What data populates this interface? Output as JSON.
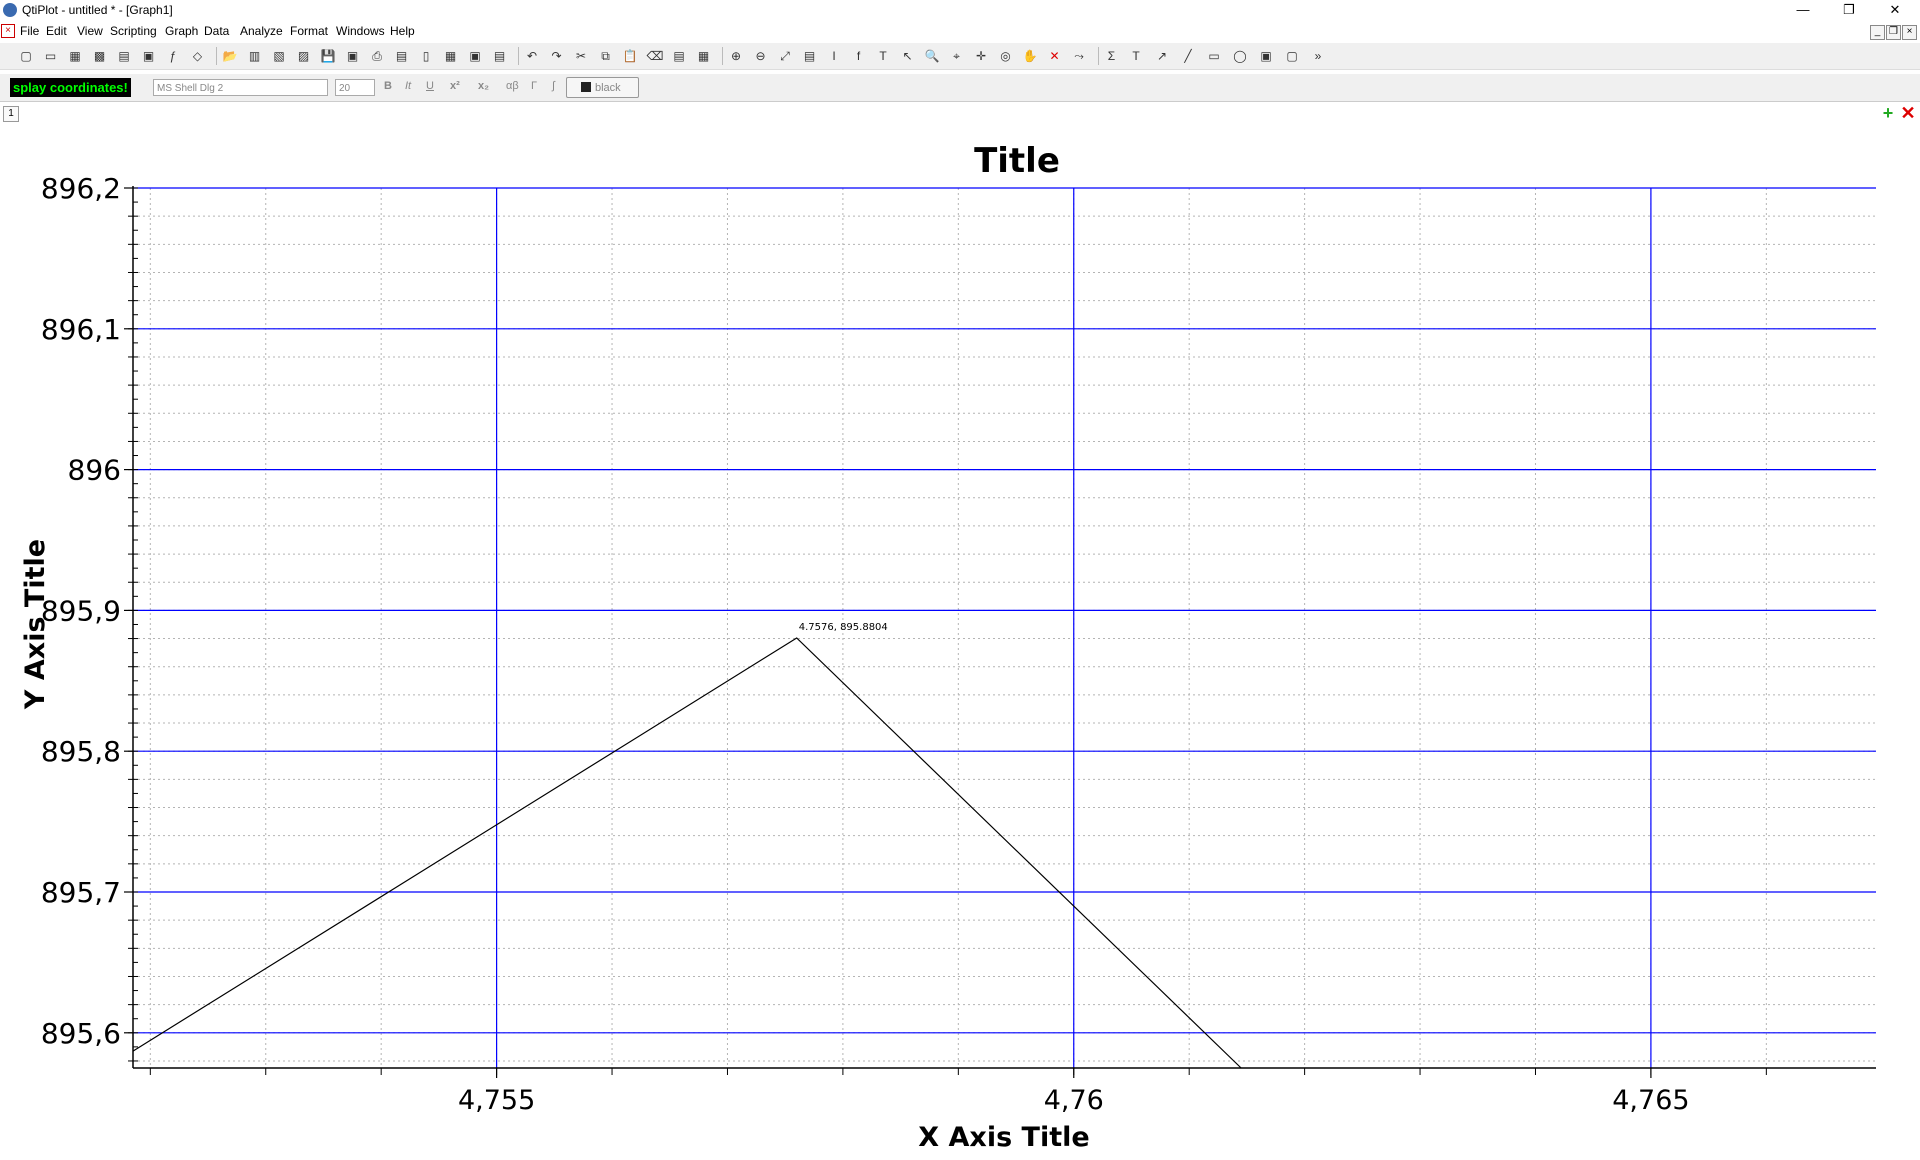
{
  "window": {
    "title": "QtiPlot - untitled * - [Graph1]",
    "controls": {
      "minimize": "—",
      "restore": "❐",
      "close": "✕"
    }
  },
  "menu": {
    "items": [
      "File",
      "Edit",
      "View",
      "Scripting",
      "Graph",
      "Data",
      "Analyze",
      "Format",
      "Windows",
      "Help"
    ]
  },
  "toolbar": {
    "icons": [
      "new-project",
      "new-folder",
      "new-table",
      "new-matrix",
      "new-note",
      "new-graph",
      "new-function",
      "new-3d-plot",
      "open-project",
      "open-template",
      "import-ascii",
      "import-image",
      "save-project",
      "save-as",
      "print",
      "print-preview",
      "export-pdf",
      "show-log",
      "show-explorer",
      "show-console",
      "undo",
      "redo",
      "cut",
      "copy",
      "paste",
      "delete",
      "append-layer",
      "arrange-layers",
      "zoom-in",
      "zoom-out",
      "rescale",
      "add-legend",
      "add-error-bars",
      "add-function",
      "add-text",
      "select",
      "zoom",
      "data-reader",
      "screen-reader",
      "data-picker",
      "pan",
      "remove-points",
      "move-points",
      "sum",
      "text-tool",
      "arrow",
      "line",
      "rectangle",
      "ellipse",
      "image",
      "layer",
      "more"
    ]
  },
  "formatbar": {
    "coordinates_label": "splay coordinates!",
    "font_name": "MS Shell Dlg 2",
    "font_size": "20",
    "bold": "B",
    "italic": "It",
    "underline": "U",
    "superscript": "x²",
    "subscript": "x₂",
    "greek": "αβ",
    "color_label": "black"
  },
  "layer": {
    "number": "1"
  },
  "chart_data": {
    "type": "line",
    "title": "Title",
    "xlabel": "X Axis Title",
    "ylabel": "Y Axis Title",
    "xlim": [
      4.75185,
      4.76695
    ],
    "ylim": [
      895.575,
      896.2
    ],
    "x_ticks": [
      4.755,
      4.76,
      4.765
    ],
    "x_tick_labels": [
      "4,755",
      "4,76",
      "4,765"
    ],
    "y_ticks": [
      895.6,
      895.7,
      895.8,
      895.9,
      896.0,
      896.1,
      896.2
    ],
    "y_tick_labels": [
      "895,6",
      "895,7",
      "895,8",
      "895,9",
      "896",
      "896,1",
      "896,2"
    ],
    "grid": true,
    "major_grid_color": "#0000ff",
    "minor_grid_color": "#b4b4b4",
    "line_color": "#000000",
    "series": [
      {
        "x": [
          4.75185,
          4.7576,
          4.76145
        ],
        "y": [
          895.587,
          895.8804,
          895.575
        ]
      }
    ],
    "annotation": {
      "x": 4.7576,
      "y": 895.8804,
      "text": "4.7576, 895.8804"
    }
  }
}
